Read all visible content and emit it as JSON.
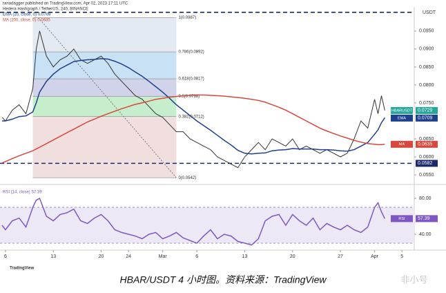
{
  "header": {
    "publisher": "ranadagger published on TradingView.com, Apr 02, 2023 17:11 UTC",
    "symbol": "Hedera Hashgraph / TetherUS, 240, BINANCE"
  },
  "caption": "HBAR/USDT 4 小时图。资料来源：TradingView",
  "logo": "TradingView",
  "watermark": "非小号",
  "chart_data": [
    {
      "type": "line",
      "unit": "USDT",
      "x": [
        5.5,
        6,
        7,
        8,
        9,
        10,
        10.5,
        11,
        12,
        13,
        14,
        15,
        16,
        17,
        18,
        19,
        20,
        21,
        22,
        23,
        24,
        25,
        26,
        27,
        28,
        29,
        30,
        31,
        32,
        33,
        34,
        35,
        36,
        37,
        38,
        39,
        40,
        41,
        42,
        43,
        44,
        45,
        46,
        47,
        48,
        49,
        50,
        51,
        52,
        53,
        54,
        55,
        56,
        57,
        58,
        59,
        60,
        60.5,
        61,
        61.5
      ],
      "xlim": [
        5.2,
        65.8
      ],
      "xticks": [
        6,
        13,
        20,
        24,
        {
          "value": 29,
          "label": "Mar"
        },
        {
          "value": 34,
          "label": "6"
        },
        {
          "value": 41,
          "label": "13"
        },
        {
          "value": 48,
          "label": "20"
        },
        {
          "value": 55,
          "label": "27"
        },
        {
          "value": 60,
          "label": "Apr"
        },
        {
          "value": 64,
          "label": "5"
        }
      ],
      "ylim": [
        0.0527,
        0.1017
      ],
      "yticks": [
        {
          "value": 0.055,
          "label": "0.0550"
        },
        {
          "value": 0.06,
          "label": "0.0600"
        },
        {
          "value": 0.065,
          "label": "0.0650"
        },
        {
          "value": 0.075,
          "label": "0.0750"
        },
        {
          "value": 0.08,
          "label": "0.0800"
        },
        {
          "value": 0.085,
          "label": "0.0850"
        },
        {
          "value": 0.09,
          "label": "0.0900"
        },
        {
          "value": 0.095,
          "label": "0.0950"
        }
      ],
      "grid": false,
      "series": [
        {
          "name": "HBARUSDT",
          "color": "#26a69a",
          "line": "#333333",
          "values": [
            0.071,
            0.07,
            0.073,
            0.0745,
            0.072,
            0.079,
            0.09,
            0.095,
            0.088,
            0.085,
            0.087,
            0.088,
            0.09,
            0.087,
            0.086,
            0.087,
            0.088,
            0.086,
            0.083,
            0.081,
            0.079,
            0.077,
            0.076,
            0.074,
            0.072,
            0.071,
            0.069,
            0.067,
            0.067,
            0.065,
            0.064,
            0.063,
            0.062,
            0.06,
            0.059,
            0.058,
            0.057,
            0.06,
            0.062,
            0.064,
            0.062,
            0.065,
            0.064,
            0.063,
            0.065,
            0.062,
            0.063,
            0.062,
            0.061,
            0.062,
            0.061,
            0.06,
            0.061,
            0.065,
            0.07,
            0.068,
            0.076,
            0.072,
            0.077,
            0.0729
          ]
        },
        {
          "name": "EMA",
          "legend": "EMA (20, close, 0)",
          "color": "#1e3f8c",
          "line": "#1e3f8c",
          "values": [
            0.07,
            0.07,
            0.0705,
            0.0712,
            0.0714,
            0.0725,
            0.075,
            0.078,
            0.081,
            0.083,
            0.0845,
            0.0855,
            0.0865,
            0.0868,
            0.087,
            0.0871,
            0.0873,
            0.0872,
            0.0866,
            0.0858,
            0.0848,
            0.0836,
            0.0824,
            0.081,
            0.0795,
            0.078,
            0.0763,
            0.0745,
            0.073,
            0.0715,
            0.07,
            0.0687,
            0.0674,
            0.066,
            0.0646,
            0.0633,
            0.0618,
            0.061,
            0.0608,
            0.061,
            0.0611,
            0.0617,
            0.0619,
            0.062,
            0.0623,
            0.0622,
            0.0622,
            0.0622,
            0.062,
            0.062,
            0.0619,
            0.0617,
            0.0616,
            0.062,
            0.063,
            0.064,
            0.0663,
            0.0675,
            0.0695,
            0.0709
          ]
        },
        {
          "name": "MA",
          "legend": "MA (200, close, 0)",
          "color": "#d9463b",
          "line": "#d9463b",
          "values": [
            0.0583,
            0.0587,
            0.0595,
            0.0603,
            0.061,
            0.0617,
            0.0622,
            0.0627,
            0.0637,
            0.0647,
            0.0657,
            0.0667,
            0.0677,
            0.0687,
            0.0697,
            0.0705,
            0.0713,
            0.072,
            0.0727,
            0.0734,
            0.074,
            0.0746,
            0.075,
            0.0755,
            0.076,
            0.0763,
            0.0766,
            0.0768,
            0.077,
            0.0771,
            0.0772,
            0.0772,
            0.0771,
            0.077,
            0.0769,
            0.0767,
            0.0765,
            0.0763,
            0.076,
            0.0757,
            0.0752,
            0.0745,
            0.0738,
            0.073,
            0.072,
            0.071,
            0.07,
            0.069,
            0.068,
            0.0672,
            0.0665,
            0.0658,
            0.0652,
            0.0646,
            0.0641,
            0.0637,
            0.0635,
            0.0634,
            0.0634,
            0.0635
          ]
        }
      ],
      "fib": {
        "xrange": [
          10,
          31
        ],
        "levels": [
          {
            "value": 0.0987,
            "label": "1(0.0987)",
            "fill": "#dfe6ee"
          },
          {
            "value": 0.0892,
            "label": "0.786(0.0892)",
            "fill": "#bfdcf3"
          },
          {
            "value": 0.0817,
            "label": "0.618(0.0817)",
            "fill": "#c9cbe6"
          },
          {
            "value": 0.0768,
            "label": "0.5(0.0768)",
            "fill": "#bdebc3"
          },
          {
            "value": 0.0712,
            "label": "0.382(0.0712)",
            "fill": "#eed9d9"
          },
          {
            "value": 0.0542,
            "label": "0(0.0542)"
          }
        ]
      },
      "support": {
        "value": 0.0582,
        "color": "#1b2a6b"
      },
      "resistance": {
        "value": 0.1002,
        "color": "#1b2a6b"
      }
    },
    {
      "type": "line",
      "x": [
        5.5,
        6,
        7,
        8,
        9,
        10,
        10.5,
        11,
        12,
        13,
        14,
        15,
        16,
        17,
        18,
        19,
        20,
        21,
        22,
        23,
        24,
        25,
        26,
        27,
        28,
        29,
        30,
        31,
        32,
        33,
        34,
        35,
        36,
        37,
        38,
        39,
        40,
        41,
        42,
        43,
        44,
        45,
        46,
        47,
        48,
        49,
        50,
        51,
        52,
        53,
        54,
        55,
        56,
        57,
        58,
        59,
        60,
        60.5,
        61,
        61.5
      ],
      "xlim": [
        5.2,
        65.8
      ],
      "ylim": [
        23.8,
        93.1
      ],
      "yticks": [
        {
          "value": 40,
          "label": "40.00"
        },
        {
          "value": 80,
          "label": "80.00"
        }
      ],
      "band": {
        "range": [
          30,
          70
        ],
        "color": "#ece8f6"
      },
      "series": [
        {
          "name": "RSI",
          "legend": "RSI (14, close)",
          "color": "#7e57c2",
          "line": "#7e57c2",
          "values": [
            50,
            45,
            55,
            58,
            48,
            70,
            78,
            80,
            60,
            55,
            62,
            64,
            68,
            55,
            52,
            58,
            62,
            55,
            45,
            42,
            40,
            38,
            35,
            40,
            42,
            35,
            38,
            42,
            36,
            33,
            30,
            38,
            45,
            35,
            40,
            38,
            32,
            30,
            28,
            35,
            55,
            60,
            62,
            50,
            62,
            55,
            50,
            58,
            45,
            52,
            48,
            45,
            50,
            45,
            42,
            48,
            70,
            75,
            65,
            57.39
          ]
        }
      ]
    }
  ]
}
